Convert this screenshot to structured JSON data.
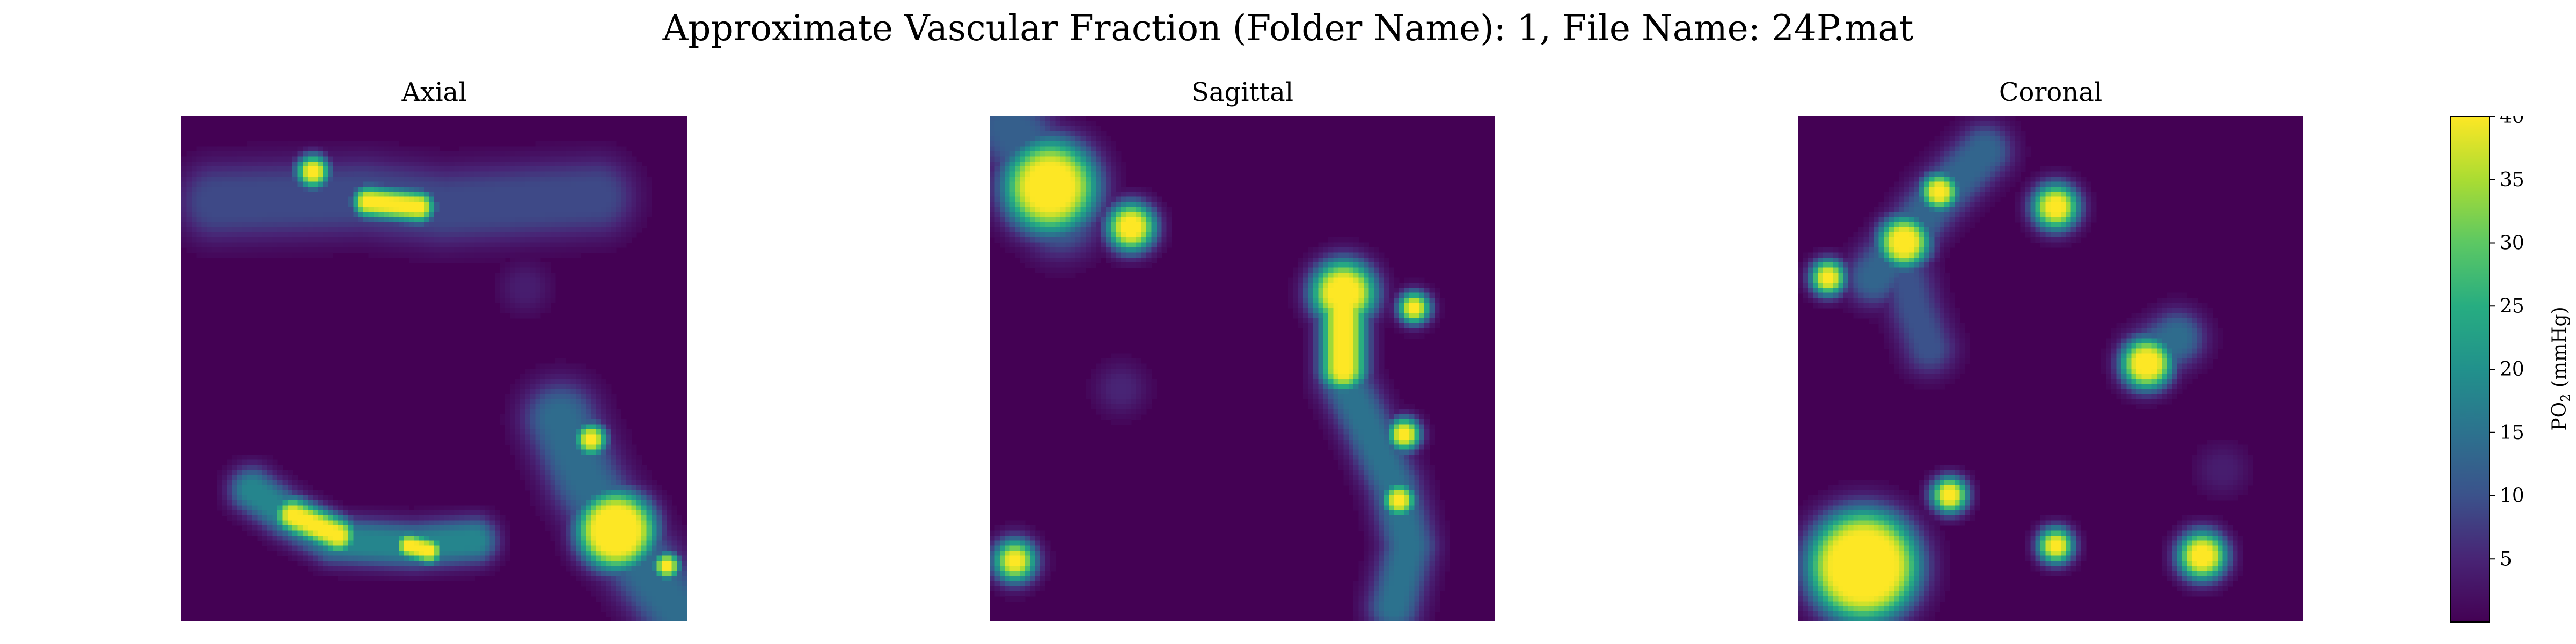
{
  "chart_data": {
    "type": "heatmap",
    "title": "Approximate Vascular Fraction (Folder Name): 1, File Name: 24P.mat",
    "colormap": "viridis",
    "background_color": "#440154",
    "colorbar": {
      "label_main": "PO",
      "label_sub": "2",
      "label_unit": " (mmHg)",
      "range": [
        0,
        40
      ],
      "ticks": [
        "5",
        "10",
        "15",
        "20",
        "25",
        "30",
        "35",
        "40"
      ],
      "tick_values": [
        5,
        10,
        15,
        20,
        25,
        30,
        35,
        40
      ]
    },
    "panels": [
      {
        "name": "Axial",
        "grid": 100,
        "features": [
          {
            "shape": "segment",
            "points": [
              [
                7,
                17
              ],
              [
                36,
                16
              ],
              [
                52,
                18
              ],
              [
                82,
                16
              ]
            ],
            "peak": 9,
            "core_width": 2.5,
            "spread": 4
          },
          {
            "shape": "segment",
            "points": [
              [
                37,
                17
              ],
              [
                47,
                18
              ]
            ],
            "peak": 40,
            "core_width": 0.7,
            "spread": 1.8
          },
          {
            "shape": "spot",
            "center": [
              26,
              11
            ],
            "radius": 0.8,
            "peak": 40,
            "spread": 1.8
          },
          {
            "shape": "segment",
            "points": [
              [
                14,
                74
              ],
              [
                21,
                79
              ],
              [
                30,
                84
              ],
              [
                46,
                85
              ],
              [
                58,
                84
              ]
            ],
            "peak": 18,
            "core_width": 1.2,
            "spread": 2.5
          },
          {
            "shape": "segment",
            "points": [
              [
                22,
                79
              ],
              [
                31,
                83
              ]
            ],
            "peak": 40,
            "core_width": 0.8,
            "spread": 2
          },
          {
            "shape": "segment",
            "points": [
              [
                45,
                85
              ],
              [
                49,
                86
              ]
            ],
            "peak": 40,
            "core_width": 0.6,
            "spread": 1.5
          },
          {
            "shape": "segment",
            "points": [
              [
                75,
                60
              ],
              [
                80,
                72
              ],
              [
                86,
                82
              ],
              [
                99,
                99
              ]
            ],
            "peak": 14,
            "core_width": 2,
            "spread": 4
          },
          {
            "shape": "spot",
            "center": [
              86,
              82
            ],
            "radius": 4,
            "peak": 40,
            "spread": 3
          },
          {
            "shape": "spot",
            "center": [
              81,
              64
            ],
            "radius": 0.7,
            "peak": 40,
            "spread": 1.8
          },
          {
            "shape": "spot",
            "center": [
              96,
              89
            ],
            "radius": 0.6,
            "peak": 40,
            "spread": 1.5
          },
          {
            "shape": "spot",
            "center": [
              68,
              34
            ],
            "radius": 1,
            "peak": 4,
            "spread": 3
          }
        ]
      },
      {
        "name": "Sagittal",
        "grid": 100,
        "features": [
          {
            "shape": "spot",
            "center": [
              12,
              14
            ],
            "radius": 4,
            "peak": 40,
            "spread": 4
          },
          {
            "shape": "segment",
            "points": [
              [
                4,
                2
              ],
              [
                10,
                10
              ],
              [
                14,
                20
              ]
            ],
            "peak": 12,
            "core_width": 2.5,
            "spread": 4
          },
          {
            "shape": "spot",
            "center": [
              28,
              22
            ],
            "radius": 1.5,
            "peak": 40,
            "spread": 2.5
          },
          {
            "shape": "segment",
            "points": [
              [
                70,
                33
              ],
              [
                70,
                52
              ],
              [
                75,
                62
              ],
              [
                80,
                73
              ],
              [
                83,
                85
              ],
              [
                80,
                97
              ]
            ],
            "peak": 15,
            "core_width": 1.2,
            "spread": 3
          },
          {
            "shape": "segment",
            "points": [
              [
                70,
                34
              ],
              [
                70,
                50
              ]
            ],
            "peak": 40,
            "core_width": 1.1,
            "spread": 2.5
          },
          {
            "shape": "spot",
            "center": [
              70,
              35
            ],
            "radius": 2.5,
            "peak": 40,
            "spread": 3
          },
          {
            "shape": "spot",
            "center": [
              84,
              38
            ],
            "radius": 0.7,
            "peak": 40,
            "spread": 1.8
          },
          {
            "shape": "spot",
            "center": [
              82,
              63
            ],
            "radius": 0.8,
            "peak": 40,
            "spread": 1.8
          },
          {
            "shape": "spot",
            "center": [
              81,
              76
            ],
            "radius": 0.8,
            "peak": 40,
            "spread": 1.8
          },
          {
            "shape": "spot",
            "center": [
              26,
              54
            ],
            "radius": 1,
            "peak": 5,
            "spread": 3
          },
          {
            "shape": "spot",
            "center": [
              5,
              88
            ],
            "radius": 0.8,
            "peak": 40,
            "spread": 2.5
          }
        ]
      },
      {
        "name": "Coronal",
        "grid": 100,
        "features": [
          {
            "shape": "segment",
            "points": [
              [
                37,
                7
              ],
              [
                27,
                17
              ],
              [
                20,
                26
              ],
              [
                15,
                32
              ]
            ],
            "peak": 13,
            "core_width": 1.5,
            "spread": 3
          },
          {
            "shape": "segment",
            "points": [
              [
                20,
                26
              ],
              [
                23,
                38
              ],
              [
                26,
                46
              ]
            ],
            "peak": 10,
            "core_width": 1.2,
            "spread": 3
          },
          {
            "shape": "spot",
            "center": [
              21,
              25
            ],
            "radius": 1.8,
            "peak": 40,
            "spread": 2.5
          },
          {
            "shape": "spot",
            "center": [
              28,
              15
            ],
            "radius": 1,
            "peak": 40,
            "spread": 2
          },
          {
            "shape": "spot",
            "center": [
              6,
              32
            ],
            "radius": 0.8,
            "peak": 40,
            "spread": 2
          },
          {
            "shape": "spot",
            "center": [
              51,
              18
            ],
            "radius": 1.2,
            "peak": 40,
            "spread": 2.5
          },
          {
            "shape": "segment",
            "points": [
              [
                69,
                48
              ],
              [
                75,
                44
              ]
            ],
            "peak": 14,
            "core_width": 1.5,
            "spread": 3
          },
          {
            "shape": "spot",
            "center": [
              69,
              49
            ],
            "radius": 1.8,
            "peak": 40,
            "spread": 2.5
          },
          {
            "shape": "spot",
            "center": [
              13,
              89
            ],
            "radius": 6,
            "peak": 40,
            "spread": 4
          },
          {
            "shape": "spot",
            "center": [
              30,
              75
            ],
            "radius": 0.9,
            "peak": 40,
            "spread": 2
          },
          {
            "shape": "spot",
            "center": [
              51,
              85
            ],
            "radius": 0.8,
            "peak": 40,
            "spread": 2
          },
          {
            "shape": "spot",
            "center": [
              80,
              87
            ],
            "radius": 1.5,
            "peak": 40,
            "spread": 2.5
          },
          {
            "shape": "spot",
            "center": [
              84,
              70
            ],
            "radius": 1,
            "peak": 4,
            "spread": 3
          }
        ]
      }
    ]
  }
}
